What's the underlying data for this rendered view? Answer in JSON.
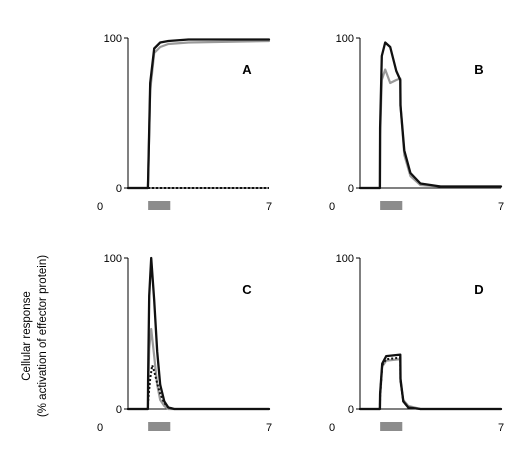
{
  "figure": {
    "ylabel_line1": "Cellular response",
    "ylabel_line2": "(% activation of effector protein)"
  },
  "colors": {
    "black": "#111111",
    "gray": "#9a9a9a",
    "stimulus_bar": "#8c8c8c"
  },
  "chart_data": [
    {
      "type": "line",
      "panel": "A",
      "xlim": [
        0,
        7
      ],
      "ylim": [
        0,
        100
      ],
      "xticks": [
        "0",
        "7"
      ],
      "yticks": [
        "0",
        "100"
      ],
      "stimulus": [
        1.0,
        2.0
      ],
      "series": [
        {
          "style": "black-solid",
          "x": [
            0,
            0.99,
            1.0,
            1.1,
            1.3,
            1.6,
            2.0,
            3.0,
            7.0
          ],
          "y": [
            0,
            0,
            5,
            70,
            93,
            97,
            98,
            99,
            99
          ]
        },
        {
          "style": "gray-solid",
          "x": [
            0,
            0.99,
            1.0,
            1.1,
            1.3,
            1.6,
            2.0,
            3.0,
            7.0
          ],
          "y": [
            0,
            0,
            5,
            65,
            90,
            94,
            96,
            97,
            98
          ]
        },
        {
          "style": "black-dotted",
          "x": [
            0,
            7
          ],
          "y": [
            0,
            0
          ]
        }
      ]
    },
    {
      "type": "line",
      "panel": "B",
      "xlim": [
        0,
        7
      ],
      "ylim": [
        0,
        100
      ],
      "xticks": [
        "0",
        "7"
      ],
      "yticks": [
        "0",
        "100"
      ],
      "stimulus": [
        1.0,
        2.0
      ],
      "series": [
        {
          "style": "black-solid",
          "x": [
            0,
            0.99,
            1.0,
            1.08,
            1.25,
            1.5,
            1.8,
            2.0,
            2.01,
            2.2,
            2.5,
            3.0,
            4.0,
            7.0
          ],
          "y": [
            0,
            0,
            40,
            88,
            97,
            94,
            78,
            72,
            55,
            25,
            10,
            3,
            1,
            1
          ]
        },
        {
          "style": "gray-solid",
          "x": [
            0,
            0.99,
            1.0,
            1.08,
            1.25,
            1.5,
            1.8,
            2.0,
            2.01,
            2.2,
            2.5,
            3.0,
            4.0,
            7.0
          ],
          "y": [
            0,
            0,
            35,
            72,
            79,
            70,
            72,
            73,
            55,
            22,
            8,
            2,
            1,
            1
          ]
        }
      ]
    },
    {
      "type": "line",
      "panel": "C",
      "xlim": [
        0,
        7
      ],
      "ylim": [
        0,
        100
      ],
      "xticks": [
        "0",
        "7"
      ],
      "yticks": [
        "0",
        "100"
      ],
      "stimulus": [
        1.0,
        2.0
      ],
      "series": [
        {
          "style": "black-solid",
          "x": [
            0,
            0.99,
            1.0,
            1.05,
            1.15,
            1.3,
            1.45,
            1.6,
            1.8,
            2.0,
            2.3,
            7.0
          ],
          "y": [
            0,
            0,
            20,
            75,
            100,
            72,
            38,
            16,
            5,
            1,
            0,
            0
          ]
        },
        {
          "style": "gray-solid",
          "x": [
            0,
            0.99,
            1.0,
            1.05,
            1.15,
            1.3,
            1.45,
            1.6,
            1.8,
            2.0,
            2.3,
            7.0
          ],
          "y": [
            0,
            0,
            10,
            40,
            53,
            35,
            16,
            6,
            2,
            0,
            0,
            0
          ]
        },
        {
          "style": "black-dotted",
          "x": [
            0,
            0.99,
            1.0,
            1.1,
            1.2,
            1.3,
            1.45,
            1.6,
            1.8,
            2.0,
            2.3,
            7.0
          ],
          "y": [
            0,
            0,
            5,
            20,
            29,
            25,
            17,
            10,
            4,
            1,
            0,
            0
          ]
        }
      ]
    },
    {
      "type": "line",
      "panel": "D",
      "xlim": [
        0,
        7
      ],
      "ylim": [
        0,
        100
      ],
      "xticks": [
        "0",
        "7"
      ],
      "yticks": [
        "0",
        "100"
      ],
      "stimulus": [
        1.0,
        2.0
      ],
      "series": [
        {
          "style": "black-solid",
          "x": [
            0,
            0.99,
            1.0,
            1.1,
            1.3,
            2.0,
            2.01,
            2.15,
            2.4,
            3.0,
            7.0
          ],
          "y": [
            0,
            0,
            10,
            30,
            35,
            36,
            20,
            5,
            1,
            0,
            0
          ]
        },
        {
          "style": "gray-solid",
          "x": [
            0,
            0.99,
            1.0,
            1.1,
            1.3,
            2.0,
            2.01,
            2.15,
            2.4,
            3.0,
            7.0
          ],
          "y": [
            0,
            0,
            8,
            28,
            32,
            33,
            18,
            6,
            2,
            0,
            0
          ]
        },
        {
          "style": "black-dotted",
          "x": [
            0,
            0.99,
            1.0,
            1.1,
            1.3,
            2.0,
            2.01,
            2.15,
            2.4,
            3.0,
            7.0
          ],
          "y": [
            0,
            0,
            9,
            29,
            33,
            34,
            19,
            5,
            1,
            0,
            0
          ]
        }
      ]
    }
  ]
}
